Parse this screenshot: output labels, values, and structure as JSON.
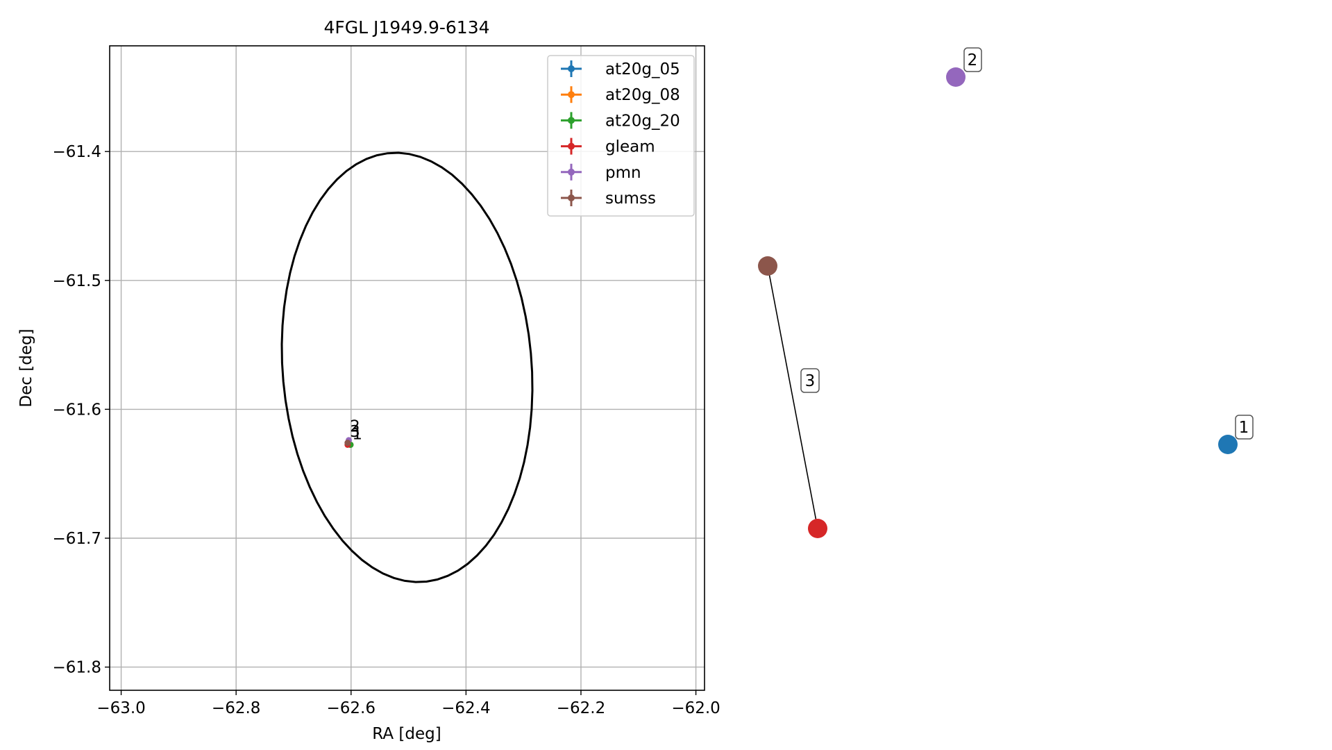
{
  "chart_data": [
    {
      "type": "scatter",
      "title": "4FGL J1949.9-6134",
      "xlabel": "RA [deg]",
      "ylabel": "Dec [deg]",
      "xlim": [
        -63.02,
        -61.985
      ],
      "ylim": [
        -61.818,
        -61.318
      ],
      "xticks": [
        -63.0,
        -62.8,
        -62.6,
        -62.4,
        -62.2,
        -62.0
      ],
      "xtick_labels": [
        "−63.0",
        "−62.8",
        "−62.6",
        "−62.4",
        "−62.2",
        "−62.0"
      ],
      "yticks": [
        -61.4,
        -61.5,
        -61.6,
        -61.7,
        -61.8
      ],
      "ytick_labels": [
        "−61.4",
        "−61.5",
        "−61.6",
        "−61.7",
        "−61.8"
      ],
      "grid": true,
      "legend_position": "top-right",
      "series": [
        {
          "name": "at20g_05",
          "color": "#1f77b4",
          "x": [
            -62.601
          ],
          "y": [
            -61.6275
          ]
        },
        {
          "name": "at20g_08",
          "color": "#ff7f0e",
          "x": [
            -62.601
          ],
          "y": [
            -61.6275
          ]
        },
        {
          "name": "at20g_20",
          "color": "#2ca02c",
          "x": [
            -62.601
          ],
          "y": [
            -61.6275
          ]
        },
        {
          "name": "gleam",
          "color": "#d62728",
          "x": [
            -62.606
          ],
          "y": [
            -61.6275
          ]
        },
        {
          "name": "pmn",
          "color": "#9467bd",
          "x": [
            -62.604
          ],
          "y": [
            -61.624
          ]
        },
        {
          "name": "sumss",
          "color": "#8c564b",
          "x": [
            -62.606
          ],
          "y": [
            -61.626
          ]
        }
      ],
      "point_labels": [
        {
          "text": "2",
          "x": -62.602,
          "y": -61.613
        },
        {
          "text": "3",
          "x": -62.602,
          "y": -61.617
        },
        {
          "text": "1",
          "x": -62.598,
          "y": -61.619
        }
      ],
      "ellipse": {
        "color": "#000000",
        "center": [
          -62.5,
          -61.567
        ],
        "ra_extent": [
          -62.72,
          -62.285
        ],
        "dec_extent": [
          -61.734,
          -61.401
        ]
      }
    },
    {
      "type": "graph",
      "nodes": [
        {
          "name": "sumss",
          "color": "#8c564b"
        },
        {
          "name": "gleam",
          "color": "#d62728"
        },
        {
          "name": "pmn",
          "color": "#9467bd",
          "label": "2"
        },
        {
          "name": "at20g",
          "color": "#1f77b4",
          "label": "1"
        }
      ],
      "edges": [
        {
          "from": "sumss",
          "to": "gleam",
          "label": "3"
        }
      ]
    }
  ]
}
